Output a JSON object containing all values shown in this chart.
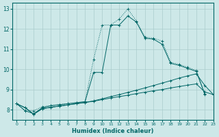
{
  "xlabel": "Humidex (Indice chaleur)",
  "xlim": [
    -0.5,
    23
  ],
  "ylim": [
    7.5,
    13.3
  ],
  "xticks": [
    0,
    1,
    2,
    3,
    4,
    5,
    6,
    7,
    8,
    9,
    10,
    11,
    12,
    13,
    14,
    15,
    16,
    17,
    18,
    19,
    20,
    21,
    22,
    23
  ],
  "yticks": [
    8,
    9,
    10,
    11,
    12,
    13
  ],
  "background_color": "#cde8e8",
  "grid_color": "#aacccc",
  "line_color": "#006666",
  "series1_x": [
    0,
    1,
    2,
    3,
    4,
    5,
    6,
    7,
    8,
    9,
    10,
    11,
    12,
    13,
    14,
    15,
    16,
    17,
    18,
    19,
    20,
    21,
    22
  ],
  "series1_y": [
    8.3,
    7.95,
    7.95,
    8.15,
    8.2,
    8.25,
    8.3,
    8.35,
    8.4,
    10.5,
    12.2,
    12.2,
    12.5,
    13.0,
    12.4,
    11.6,
    11.55,
    11.4,
    10.35,
    10.25,
    10.1,
    9.95,
    8.8
  ],
  "series1_style": "dotted",
  "series2_x": [
    0,
    1,
    2,
    3,
    4,
    5,
    6,
    7,
    8,
    9,
    10,
    11,
    12,
    13,
    14,
    15,
    16,
    17,
    18,
    19,
    20,
    21,
    22
  ],
  "series2_y": [
    8.3,
    7.95,
    7.8,
    8.1,
    8.2,
    8.25,
    8.3,
    8.35,
    8.4,
    9.85,
    9.85,
    12.2,
    12.2,
    12.65,
    12.35,
    11.55,
    11.5,
    11.25,
    10.3,
    10.2,
    10.05,
    9.9,
    8.75
  ],
  "series2_style": "solid",
  "series3_x": [
    0,
    1,
    2,
    3,
    4,
    5,
    6,
    7,
    8,
    9,
    10,
    11,
    12,
    13,
    14,
    15,
    16,
    17,
    18,
    19,
    20,
    21,
    22,
    23
  ],
  "series3_y": [
    8.3,
    8.1,
    7.78,
    8.05,
    8.12,
    8.18,
    8.24,
    8.3,
    8.36,
    8.42,
    8.5,
    8.58,
    8.65,
    8.72,
    8.8,
    8.87,
    8.94,
    9.0,
    9.08,
    9.15,
    9.22,
    9.28,
    8.88,
    8.75
  ],
  "series3_style": "solid",
  "series4_x": [
    0,
    1,
    2,
    3,
    4,
    5,
    6,
    7,
    8,
    9,
    10,
    11,
    12,
    13,
    14,
    15,
    16,
    17,
    18,
    19,
    20,
    21,
    22,
    23
  ],
  "series4_y": [
    8.3,
    8.1,
    7.78,
    8.05,
    8.12,
    8.18,
    8.24,
    8.3,
    8.36,
    8.44,
    8.54,
    8.65,
    8.75,
    8.86,
    8.97,
    9.08,
    9.2,
    9.32,
    9.44,
    9.57,
    9.68,
    9.78,
    9.2,
    8.75
  ],
  "series4_style": "solid"
}
